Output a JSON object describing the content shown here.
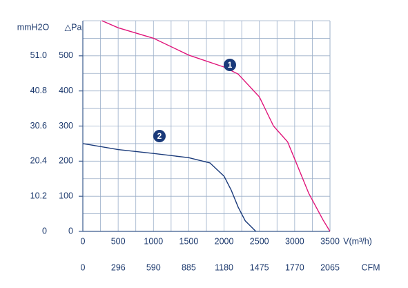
{
  "chart_data": {
    "type": "line",
    "y_label": "△Pa",
    "y2_label": "mmH2O",
    "x_label": "V(m³/h)",
    "x2_label": "CFM",
    "xlim": [
      0,
      3500
    ],
    "xticks": [
      0,
      500,
      1000,
      1500,
      2000,
      2500,
      3000,
      3500
    ],
    "x2lim": [
      0,
      2065
    ],
    "x2ticks": [
      0,
      296,
      590,
      885,
      1180,
      1475,
      1770,
      2065
    ],
    "ylim": [
      0,
      600
    ],
    "yticks": [
      0,
      100,
      200,
      300,
      400,
      500
    ],
    "y2lim": [
      0,
      61.2
    ],
    "y2ticks": [
      0,
      10.2,
      20.4,
      30.6,
      40.8,
      {
        "value": 51,
        "label": "51.0"
      }
    ],
    "grid": true,
    "series": [
      {
        "name": "1",
        "color": "#e0157a",
        "x": [
          270,
          500,
          1000,
          1500,
          2000,
          2200,
          2500,
          2700,
          2900,
          3000,
          3200,
          3400,
          3500
        ],
        "values": [
          600,
          580,
          550,
          502,
          468,
          448,
          383,
          300,
          255,
          206,
          108,
          33,
          0
        ]
      },
      {
        "name": "2",
        "color": "#1a3a7a",
        "x": [
          0,
          500,
          1000,
          1500,
          1800,
          2000,
          2100,
          2200,
          2300,
          2450
        ],
        "values": [
          250,
          233,
          222,
          210,
          195,
          157,
          118,
          69,
          30,
          0
        ]
      }
    ]
  }
}
